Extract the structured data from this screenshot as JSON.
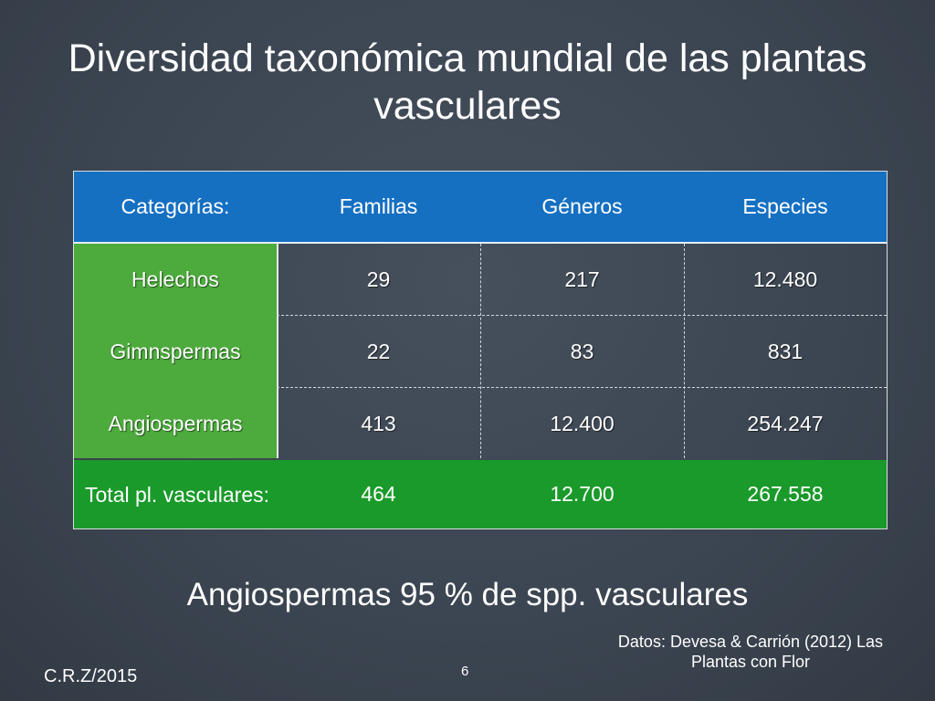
{
  "slide": {
    "title": "Diversidad taxonómica mundial de las plantas vasculares",
    "table": {
      "headers": [
        "Categorías:",
        "Familias",
        "Géneros",
        "Especies"
      ],
      "rows": [
        [
          "Helechos",
          "29",
          "217",
          "12.480"
        ],
        [
          "Gimnspermas",
          "22",
          "83",
          "831"
        ],
        [
          "Angiospermas",
          "413",
          "12.400",
          "254.247"
        ]
      ],
      "total": [
        "Total pl. vasculares:",
        "464",
        "12.700",
        "267.558"
      ]
    },
    "summary": "Angiospermas 95 % de spp. vasculares",
    "footer": {
      "author": "C.R.Z/2015",
      "page": "6",
      "source": "Datos: Devesa & Carrión (2012) Las Plantas con Flor"
    },
    "colors": {
      "header": "#1570c2",
      "category_column": "#4cab3c",
      "total_row": "#1a9a2a",
      "background": "#3a4450"
    }
  }
}
